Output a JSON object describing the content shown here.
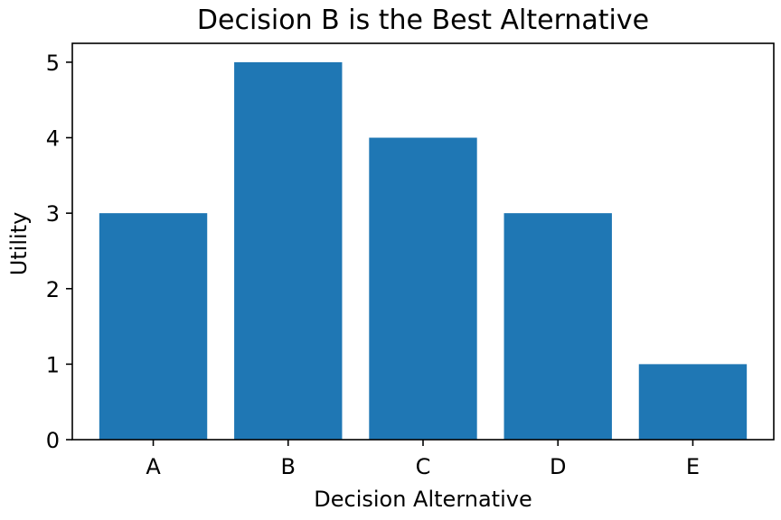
{
  "chart_data": {
    "type": "bar",
    "title": "Decision B is the Best Alternative",
    "xlabel": "Decision Alternative",
    "ylabel": "Utility",
    "categories": [
      "A",
      "B",
      "C",
      "D",
      "E"
    ],
    "values": [
      3,
      5,
      4,
      3,
      1
    ],
    "ylim": [
      0,
      5.25
    ],
    "yticks": [
      0,
      1,
      2,
      3,
      4,
      5
    ],
    "grid": false,
    "bar_color": "#1f77b4"
  }
}
